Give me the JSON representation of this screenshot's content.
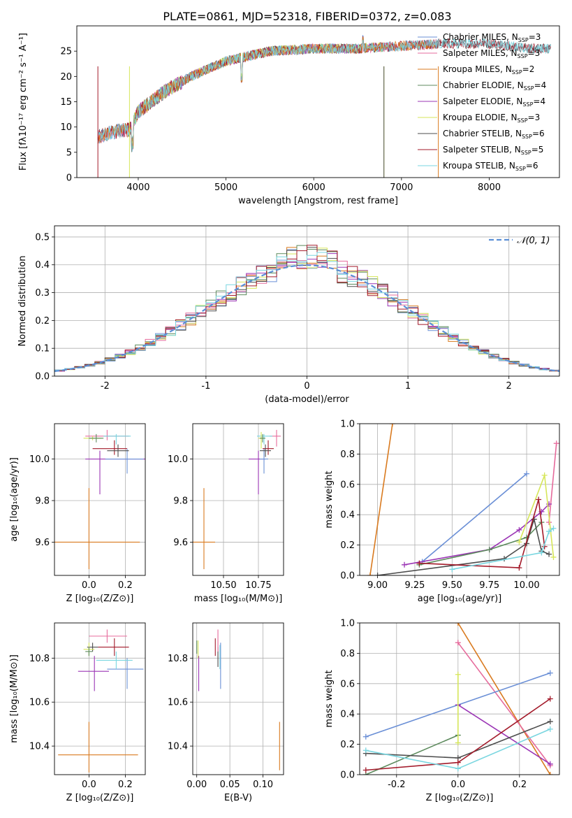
{
  "figure": {
    "title": "PLATE=0861, MJD=52318, FIBERID=0372, z=0.083"
  },
  "colors": {
    "Chabrier MILES": "#6a8fd6",
    "Salpeter MILES": "#e66b9c",
    "Kroupa MILES": "#d97a1f",
    "Chabrier ELODIE": "#5c8a5c",
    "Salpeter ELODIE": "#9b35b5",
    "Kroupa ELODIE": "#d6e65a",
    "Chabrier STELIB": "#4d4d4d",
    "Salpeter STELIB": "#a31a2a",
    "Kroupa STELIB": "#79d6e0",
    "normal": "#5b8fd6",
    "grid": "#b0b0b0"
  },
  "chart_data": [
    {
      "id": "spectrum",
      "type": "line",
      "xlabel": "wavelength [Angstrom, rest frame]",
      "ylabel": "Flux [fλ10⁻¹⁷ erg cm⁻² s⁻¹ A⁻¹]",
      "xlim": [
        3300,
        8800
      ],
      "ylim": [
        0,
        30
      ],
      "xticks": [
        4000,
        5000,
        6000,
        7000,
        8000
      ],
      "yticks": [
        0,
        5,
        10,
        15,
        20,
        25
      ],
      "legend_position": "right",
      "legend": [
        {
          "base": "Chabrier MILES",
          "n": "3"
        },
        {
          "base": "Salpeter MILES",
          "n": "3"
        },
        {
          "base": "Kroupa MILES",
          "n": "2"
        },
        {
          "base": "Chabrier ELODIE",
          "n": "4"
        },
        {
          "base": "Salpeter ELODIE",
          "n": "4"
        },
        {
          "base": "Kroupa ELODIE",
          "n": "3"
        },
        {
          "base": "Chabrier STELIB",
          "n": "6"
        },
        {
          "base": "Salpeter STELIB",
          "n": "5"
        },
        {
          "base": "Kroupa STELIB",
          "n": "6"
        }
      ],
      "legend_suffix": ", N",
      "legend_sub": "SSP",
      "series_ranges": {
        "Chabrier MILES": [
          3540,
          7400
        ],
        "Salpeter MILES": [
          3540,
          7400
        ],
        "Kroupa MILES": [
          3540,
          7400
        ],
        "Chabrier ELODIE": [
          3900,
          6800
        ],
        "Salpeter ELODIE": [
          3900,
          6800
        ],
        "Kroupa ELODIE": [
          3900,
          6800
        ],
        "Chabrier STELIB": [
          3540,
          8700
        ],
        "Salpeter STELIB": [
          3540,
          8700
        ],
        "Kroupa STELIB": [
          3540,
          8700
        ]
      },
      "continuum": {
        "x": [
          3540,
          3700,
          3900,
          4000,
          4300,
          4600,
          5000,
          5500,
          6000,
          6500,
          7000,
          7500,
          8000,
          8500
        ],
        "y": [
          8.0,
          9.0,
          9.5,
          13.0,
          17.0,
          20.0,
          23.0,
          25.0,
          25.5,
          25.5,
          26.0,
          26.5,
          26.5,
          25.5
        ]
      }
    },
    {
      "id": "residuals",
      "type": "histogram",
      "xlabel": "(data-model)/error",
      "ylabel": "Normed distribution",
      "xlim": [
        -2.5,
        2.5
      ],
      "ylim": [
        0,
        0.54
      ],
      "xticks": [
        -2,
        -1,
        0,
        1,
        2
      ],
      "yticks": [
        0.0,
        0.1,
        0.2,
        0.3,
        0.4,
        0.5
      ],
      "bin_width": 0.1,
      "legend": [
        {
          "label": "𝒩(0, 1)",
          "style": "dashed"
        }
      ],
      "legend_position": "top-right"
    },
    {
      "id": "age-vs-Z",
      "type": "errorbar",
      "xlabel": "Z [log₁₀(Z/Z⊙)]",
      "ylabel": "age  [log₁₀(age/yr)]",
      "xlim": [
        -0.19,
        0.31
      ],
      "ylim": [
        9.44,
        10.17
      ],
      "xticks": [
        0.0,
        0.2
      ],
      "yticks": [
        9.6,
        9.8,
        10.0
      ]
    },
    {
      "id": "age-vs-mass",
      "type": "errorbar",
      "xlabel": "mass [log₁₀(M/M⊙)]",
      "ylabel": "",
      "xlim": [
        10.28,
        10.93
      ],
      "ylim": [
        9.44,
        10.17
      ],
      "xticks": [
        10.5,
        10.75
      ],
      "yticks": [
        9.6,
        9.8,
        10.0
      ]
    },
    {
      "id": "weight-vs-age",
      "type": "line",
      "xlabel": "age  [log₁₀(age/yr)]",
      "ylabel": "mass weight",
      "xlim": [
        8.88,
        10.22
      ],
      "ylim": [
        0.0,
        1.0
      ],
      "xticks": [
        9.0,
        9.25,
        9.5,
        9.75,
        10.0
      ],
      "yticks": [
        0.0,
        0.2,
        0.4,
        0.6,
        0.8,
        1.0
      ],
      "series": [
        {
          "name": "Kroupa MILES",
          "x": [
            8.95,
            9.1
          ],
          "y": [
            0.0,
            1.0
          ]
        },
        {
          "name": "Chabrier MILES",
          "x": [
            9.3,
            10.0
          ],
          "y": [
            0.09,
            0.67
          ]
        },
        {
          "name": "Salpeter MILES",
          "x": [
            10.15,
            10.2
          ],
          "y": [
            0.35,
            0.87
          ]
        },
        {
          "name": "Salpeter ELODIE",
          "x": [
            9.18,
            9.75,
            9.95,
            10.1,
            10.15
          ],
          "y": [
            0.07,
            0.17,
            0.3,
            0.42,
            0.47
          ]
        },
        {
          "name": "Chabrier ELODIE",
          "x": [
            9.28,
            9.75,
            10.0,
            10.1
          ],
          "y": [
            0.07,
            0.17,
            0.25,
            0.35
          ]
        },
        {
          "name": "Kroupa ELODIE",
          "x": [
            9.95,
            10.12,
            10.18
          ],
          "y": [
            0.22,
            0.66,
            0.12
          ]
        },
        {
          "name": "Chabrier STELIB",
          "x": [
            9.0,
            9.85,
            10.0,
            10.05,
            10.1,
            10.15
          ],
          "y": [
            0.0,
            0.11,
            0.21,
            0.37,
            0.16,
            0.14
          ]
        },
        {
          "name": "Salpeter STELIB",
          "x": [
            9.28,
            9.95,
            10.08,
            10.12
          ],
          "y": [
            0.08,
            0.05,
            0.5,
            0.19
          ]
        },
        {
          "name": "Kroupa STELIB",
          "x": [
            9.5,
            10.1,
            10.15,
            10.18
          ],
          "y": [
            0.04,
            0.15,
            0.29,
            0.31
          ]
        }
      ]
    },
    {
      "id": "mass-vs-Z",
      "type": "errorbar",
      "xlabel": "Z [log₁₀(Z/Z⊙)]",
      "ylabel": "mass [log₁₀(M/M⊙)]",
      "xlim": [
        -0.19,
        0.31
      ],
      "ylim": [
        10.27,
        10.96
      ],
      "xticks": [
        0.0,
        0.2
      ],
      "yticks": [
        10.4,
        10.6,
        10.8
      ]
    },
    {
      "id": "mass-vs-EBV",
      "type": "errorbar",
      "xlabel": "E(B-V)",
      "ylabel": "",
      "xlim": [
        -0.006,
        0.131
      ],
      "ylim": [
        10.27,
        10.96
      ],
      "xticks": [
        0.0,
        0.05,
        0.1
      ],
      "yticks": [
        10.4,
        10.6,
        10.8
      ]
    },
    {
      "id": "weight-vs-Z",
      "type": "line",
      "xlabel": "Z [log₁₀(Z/Z⊙)]",
      "ylabel": "mass weight",
      "xlim": [
        -0.32,
        0.33
      ],
      "ylim": [
        0.0,
        1.0
      ],
      "xticks": [
        -0.2,
        0.0,
        0.2
      ],
      "yticks": [
        0.0,
        0.2,
        0.4,
        0.6,
        0.8,
        1.0
      ],
      "series": [
        {
          "name": "Kroupa MILES",
          "x": [
            0.0,
            0.3
          ],
          "y": [
            1.0,
            0.0
          ]
        },
        {
          "name": "Salpeter MILES",
          "x": [
            0.0,
            0.3
          ],
          "y": [
            0.87,
            0.06
          ]
        },
        {
          "name": "Chabrier MILES",
          "x": [
            -0.3,
            0.0,
            0.3
          ],
          "y": [
            0.25,
            0.46,
            0.67
          ]
        },
        {
          "name": "Salpeter ELODIE",
          "x": [
            0.0,
            0.3
          ],
          "y": [
            0.46,
            0.07
          ]
        },
        {
          "name": "Chabrier ELODIE",
          "x": [
            -0.3,
            0.0
          ],
          "y": [
            0.0,
            0.26
          ]
        },
        {
          "name": "Kroupa ELODIE",
          "x": [
            0.0,
            0.0
          ],
          "y": [
            0.21,
            0.66
          ]
        },
        {
          "name": "Chabrier STELIB",
          "x": [
            -0.3,
            0.0,
            0.3
          ],
          "y": [
            0.14,
            0.11,
            0.35
          ]
        },
        {
          "name": "Salpeter STELIB",
          "x": [
            -0.3,
            0.0,
            0.3
          ],
          "y": [
            0.03,
            0.08,
            0.5
          ]
        },
        {
          "name": "Kroupa STELIB",
          "x": [
            -0.3,
            0.0,
            0.3
          ],
          "y": [
            0.16,
            0.04,
            0.3
          ]
        }
      ]
    }
  ]
}
